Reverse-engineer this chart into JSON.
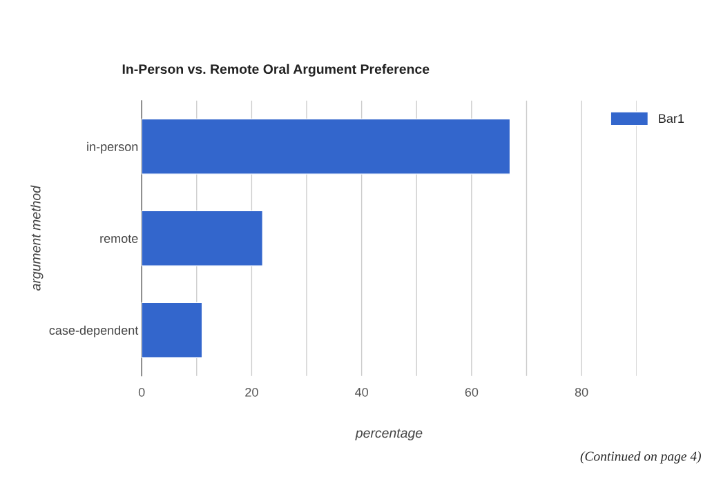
{
  "chart_data": {
    "type": "bar",
    "title": "In-Person vs. Remote Oral Argument Preference",
    "xlabel": "percentage",
    "ylabel": "argument method",
    "orientation": "horizontal",
    "categories": [
      "in-person",
      "remote",
      "case-dependent"
    ],
    "series": [
      {
        "name": "Bar1",
        "color": "#3366cc",
        "values": [
          67,
          22,
          11
        ]
      }
    ],
    "xlim": [
      0,
      90
    ],
    "xticks": [
      0,
      {
        "value": 10,
        "label": null
      },
      20,
      {
        "value": 30,
        "label": null
      },
      40,
      {
        "value": 50,
        "label": null
      },
      60,
      {
        "value": 70,
        "label": null
      },
      80,
      {
        "value": 90,
        "label": null
      }
    ],
    "grid": "x",
    "legend": "top right",
    "annotations": [
      "(Continued on page 4)"
    ]
  }
}
